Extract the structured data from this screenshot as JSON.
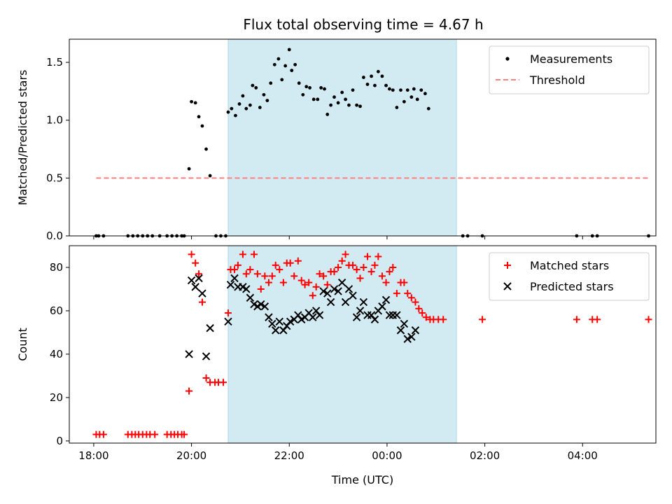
{
  "figure": {
    "title": "Flux total observing time = 4.67 h"
  },
  "colors": {
    "shade": "#add8e6",
    "threshold": "#ff7f7f",
    "measurement": "#000000",
    "matched": "#ff0000",
    "predicted": "#000000"
  },
  "chart_data": [
    {
      "type": "scatter",
      "panel": "top",
      "title": "Flux total observing time = 4.67 h",
      "xlabel": "",
      "ylabel": "Matched/Predicted stars",
      "x_unit": "hours since 18:00 UTC",
      "xlim": [
        -0.5,
        11.5
      ],
      "ylim": [
        0,
        1.7
      ],
      "yticks": [
        0.0,
        0.5,
        1.0,
        1.5
      ],
      "ytick_labels": [
        "0.0",
        "0.5",
        "1.0",
        "1.5"
      ],
      "shaded_span": [
        2.75,
        7.42
      ],
      "legend_position": "upper right",
      "grid": false,
      "series": [
        {
          "name": "Measurements",
          "kind": "points",
          "points": [
            [
              0.05,
              0
            ],
            [
              0.1,
              0
            ],
            [
              0.2,
              0
            ],
            [
              0.7,
              0
            ],
            [
              0.8,
              0
            ],
            [
              0.9,
              0
            ],
            [
              1.0,
              0
            ],
            [
              1.1,
              0
            ],
            [
              1.2,
              0
            ],
            [
              1.35,
              0
            ],
            [
              1.5,
              0
            ],
            [
              1.6,
              0
            ],
            [
              1.7,
              0
            ],
            [
              1.8,
              0
            ],
            [
              1.85,
              0
            ],
            [
              1.95,
              0.58
            ],
            [
              2.0,
              1.16
            ],
            [
              2.08,
              1.15
            ],
            [
              2.15,
              1.03
            ],
            [
              2.22,
              0.95
            ],
            [
              2.3,
              0.75
            ],
            [
              2.38,
              0.52
            ],
            [
              2.5,
              0
            ],
            [
              2.6,
              0
            ],
            [
              2.7,
              0
            ],
            [
              2.75,
              1.07
            ],
            [
              2.82,
              1.1
            ],
            [
              2.9,
              1.04
            ],
            [
              2.98,
              1.14
            ],
            [
              3.05,
              1.21
            ],
            [
              3.12,
              1.1
            ],
            [
              3.2,
              1.13
            ],
            [
              3.25,
              1.3
            ],
            [
              3.32,
              1.28
            ],
            [
              3.4,
              1.11
            ],
            [
              3.48,
              1.22
            ],
            [
              3.55,
              1.17
            ],
            [
              3.62,
              1.32
            ],
            [
              3.7,
              1.48
            ],
            [
              3.78,
              1.53
            ],
            [
              3.85,
              1.35
            ],
            [
              3.92,
              1.47
            ],
            [
              4.0,
              1.61
            ],
            [
              4.05,
              1.43
            ],
            [
              4.12,
              1.48
            ],
            [
              4.2,
              1.32
            ],
            [
              4.28,
              1.22
            ],
            [
              4.35,
              1.29
            ],
            [
              4.42,
              1.28
            ],
            [
              4.5,
              1.18
            ],
            [
              4.58,
              1.18
            ],
            [
              4.65,
              1.28
            ],
            [
              4.72,
              1.27
            ],
            [
              4.78,
              1.05
            ],
            [
              4.85,
              1.13
            ],
            [
              4.92,
              1.2
            ],
            [
              5.0,
              1.15
            ],
            [
              5.08,
              1.24
            ],
            [
              5.15,
              1.18
            ],
            [
              5.22,
              1.13
            ],
            [
              5.3,
              1.26
            ],
            [
              5.38,
              1.13
            ],
            [
              5.45,
              1.12
            ],
            [
              5.52,
              1.37
            ],
            [
              5.6,
              1.31
            ],
            [
              5.68,
              1.38
            ],
            [
              5.75,
              1.3
            ],
            [
              5.82,
              1.42
            ],
            [
              5.9,
              1.38
            ],
            [
              5.98,
              1.3
            ],
            [
              6.05,
              1.27
            ],
            [
              6.12,
              1.26
            ],
            [
              6.2,
              1.11
            ],
            [
              6.28,
              1.26
            ],
            [
              6.35,
              1.16
            ],
            [
              6.42,
              1.26
            ],
            [
              6.5,
              1.2
            ],
            [
              6.55,
              1.27
            ],
            [
              6.62,
              1.18
            ],
            [
              6.7,
              1.26
            ],
            [
              6.78,
              1.23
            ],
            [
              6.85,
              1.1
            ],
            [
              7.55,
              0
            ],
            [
              7.65,
              0
            ],
            [
              7.95,
              0
            ],
            [
              9.88,
              0
            ],
            [
              10.2,
              0
            ],
            [
              10.3,
              0
            ],
            [
              11.35,
              0
            ]
          ]
        },
        {
          "name": "Threshold",
          "kind": "dashed-line",
          "x": [
            0.05,
            11.35
          ],
          "y": [
            0.5,
            0.5
          ]
        }
      ]
    },
    {
      "type": "scatter",
      "panel": "bottom",
      "xlabel": "Time (UTC)",
      "ylabel": "Count",
      "x_unit": "hours since 18:00 UTC",
      "xlim": [
        -0.5,
        11.5
      ],
      "ylim": [
        -1,
        90
      ],
      "yticks": [
        0,
        20,
        40,
        60,
        80
      ],
      "ytick_labels": [
        "0",
        "20",
        "40",
        "60",
        "80"
      ],
      "xticks": [
        0,
        2,
        4,
        6,
        8,
        10
      ],
      "xtick_labels": [
        "18:00",
        "20:00",
        "22:00",
        "00:00",
        "02:00",
        "04:00"
      ],
      "shaded_span": [
        2.75,
        7.42
      ],
      "legend_position": "upper right",
      "grid": false,
      "series": [
        {
          "name": "Matched stars",
          "kind": "plus",
          "points": [
            [
              0.05,
              3
            ],
            [
              0.12,
              3
            ],
            [
              0.2,
              3
            ],
            [
              0.7,
              3
            ],
            [
              0.78,
              3
            ],
            [
              0.85,
              3
            ],
            [
              0.92,
              3
            ],
            [
              1.0,
              3
            ],
            [
              1.08,
              3
            ],
            [
              1.15,
              3
            ],
            [
              1.25,
              3
            ],
            [
              1.5,
              3
            ],
            [
              1.58,
              3
            ],
            [
              1.65,
              3
            ],
            [
              1.72,
              3
            ],
            [
              1.8,
              3
            ],
            [
              1.85,
              3
            ],
            [
              1.95,
              23
            ],
            [
              2.0,
              86
            ],
            [
              2.08,
              82
            ],
            [
              2.15,
              77
            ],
            [
              2.22,
              64
            ],
            [
              2.3,
              29
            ],
            [
              2.38,
              27
            ],
            [
              2.48,
              27
            ],
            [
              2.55,
              27
            ],
            [
              2.65,
              27
            ],
            [
              2.75,
              59
            ],
            [
              2.8,
              79
            ],
            [
              2.88,
              79
            ],
            [
              2.95,
              81
            ],
            [
              3.05,
              86
            ],
            [
              3.12,
              77
            ],
            [
              3.2,
              79
            ],
            [
              3.28,
              86
            ],
            [
              3.35,
              77
            ],
            [
              3.42,
              70
            ],
            [
              3.5,
              76
            ],
            [
              3.58,
              73
            ],
            [
              3.65,
              76
            ],
            [
              3.72,
              81
            ],
            [
              3.8,
              79
            ],
            [
              3.88,
              73
            ],
            [
              3.95,
              82
            ],
            [
              4.02,
              82
            ],
            [
              4.1,
              76
            ],
            [
              4.18,
              83
            ],
            [
              4.25,
              74
            ],
            [
              4.32,
              72
            ],
            [
              4.4,
              73
            ],
            [
              4.48,
              67
            ],
            [
              4.55,
              71
            ],
            [
              4.62,
              77
            ],
            [
              4.7,
              76
            ],
            [
              4.78,
              72
            ],
            [
              4.85,
              78
            ],
            [
              4.92,
              78
            ],
            [
              5.0,
              80
            ],
            [
              5.08,
              83
            ],
            [
              5.15,
              86
            ],
            [
              5.22,
              81
            ],
            [
              5.3,
              81
            ],
            [
              5.38,
              79
            ],
            [
              5.45,
              75
            ],
            [
              5.52,
              80
            ],
            [
              5.6,
              85
            ],
            [
              5.68,
              78
            ],
            [
              5.75,
              81
            ],
            [
              5.82,
              85
            ],
            [
              5.9,
              76
            ],
            [
              5.98,
              73
            ],
            [
              6.05,
              78
            ],
            [
              6.12,
              80
            ],
            [
              6.2,
              68
            ],
            [
              6.28,
              73
            ],
            [
              6.35,
              73
            ],
            [
              6.42,
              68
            ],
            [
              6.5,
              66
            ],
            [
              6.58,
              64
            ],
            [
              6.65,
              61
            ],
            [
              6.72,
              59
            ],
            [
              6.8,
              57
            ],
            [
              6.88,
              56
            ],
            [
              6.95,
              56
            ],
            [
              7.05,
              56
            ],
            [
              7.15,
              56
            ],
            [
              7.95,
              56
            ],
            [
              9.88,
              56
            ],
            [
              10.2,
              56
            ],
            [
              10.3,
              56
            ],
            [
              11.35,
              56
            ]
          ]
        },
        {
          "name": "Predicted stars",
          "kind": "x",
          "points": [
            [
              1.95,
              40
            ],
            [
              2.0,
              74
            ],
            [
              2.08,
              71
            ],
            [
              2.15,
              75
            ],
            [
              2.22,
              68
            ],
            [
              2.3,
              39
            ],
            [
              2.38,
              52
            ],
            [
              2.75,
              55
            ],
            [
              2.8,
              72
            ],
            [
              2.88,
              75
            ],
            [
              2.95,
              71
            ],
            [
              3.05,
              71
            ],
            [
              3.12,
              70
            ],
            [
              3.2,
              66
            ],
            [
              3.28,
              63
            ],
            [
              3.35,
              62
            ],
            [
              3.42,
              63
            ],
            [
              3.5,
              62
            ],
            [
              3.58,
              57
            ],
            [
              3.65,
              54
            ],
            [
              3.72,
              51
            ],
            [
              3.8,
              55
            ],
            [
              3.88,
              51
            ],
            [
              3.95,
              53
            ],
            [
              4.02,
              55
            ],
            [
              4.1,
              56
            ],
            [
              4.18,
              58
            ],
            [
              4.25,
              56
            ],
            [
              4.32,
              57
            ],
            [
              4.4,
              59
            ],
            [
              4.48,
              57
            ],
            [
              4.55,
              60
            ],
            [
              4.62,
              58
            ],
            [
              4.7,
              69
            ],
            [
              4.78,
              68
            ],
            [
              4.85,
              64
            ],
            [
              4.92,
              70
            ],
            [
              5.0,
              69
            ],
            [
              5.08,
              73
            ],
            [
              5.15,
              64
            ],
            [
              5.22,
              70
            ],
            [
              5.3,
              67
            ],
            [
              5.38,
              57
            ],
            [
              5.45,
              60
            ],
            [
              5.52,
              64
            ],
            [
              5.6,
              58
            ],
            [
              5.68,
              58
            ],
            [
              5.75,
              56
            ],
            [
              5.82,
              60
            ],
            [
              5.9,
              62
            ],
            [
              5.98,
              65
            ],
            [
              6.05,
              58
            ],
            [
              6.12,
              58
            ],
            [
              6.2,
              58
            ],
            [
              6.28,
              51
            ],
            [
              6.35,
              54
            ],
            [
              6.42,
              47
            ],
            [
              6.5,
              48
            ],
            [
              6.58,
              51
            ]
          ]
        }
      ]
    }
  ]
}
